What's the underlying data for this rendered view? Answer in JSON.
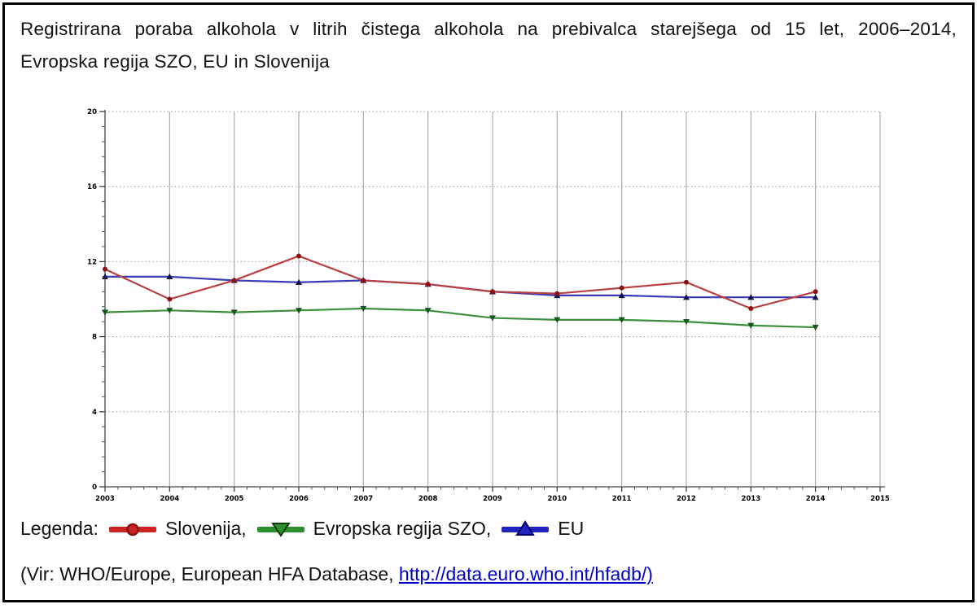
{
  "page": {
    "title_line1": "Registrirana poraba alkohola v litrih čistega alkohola na prebivalca starejšega od 15 let, 2006–2014,",
    "title_line2": "Evropska regija SZO, EU in Slovenija",
    "legend": {
      "label": "Legenda:",
      "items": [
        {
          "name": "Slovenija,",
          "color": "#cc2222",
          "marker": "circle",
          "marker_color": "#8b1010"
        },
        {
          "name": "Evropska regija SZO,",
          "color": "#2e8f2e",
          "marker": "triangle-down",
          "marker_color": "#0a3d0a"
        },
        {
          "name": "EU",
          "color": "#2222c0",
          "marker": "triangle-up",
          "marker_color": "#00006b"
        }
      ]
    },
    "source": {
      "prefix": "(Vir: WHO/Europe, European HFA Database, ",
      "link": "http://data.euro.who.int/hfadb/)"
    }
  },
  "chart_data": {
    "type": "line",
    "title": "",
    "xlabel": "",
    "ylabel": "",
    "x": [
      2003,
      2004,
      2005,
      2006,
      2007,
      2008,
      2009,
      2010,
      2011,
      2012,
      2013,
      2014
    ],
    "series": [
      {
        "name": "Slovenija",
        "color": "#b94040",
        "marker": "circle",
        "marker_color": "#8b1010",
        "values": [
          11.6,
          10.0,
          11.0,
          12.3,
          11.0,
          10.8,
          10.4,
          10.3,
          10.6,
          10.9,
          9.5,
          10.4
        ]
      },
      {
        "name": "Evropska regija SZO",
        "color": "#3d8f3d",
        "marker": "triangle-down",
        "marker_color": "#14581c",
        "values": [
          9.3,
          9.4,
          9.3,
          9.4,
          9.5,
          9.4,
          9.0,
          8.9,
          8.9,
          8.8,
          8.6,
          8.5
        ]
      },
      {
        "name": "EU",
        "color": "#3a3ab8",
        "marker": "triangle-up",
        "marker_color": "#14144f",
        "values": [
          11.2,
          11.2,
          11.0,
          10.9,
          11.0,
          10.8,
          10.4,
          10.2,
          10.2,
          10.1,
          10.1,
          10.1
        ]
      }
    ],
    "xlim": [
      2003,
      2015
    ],
    "ylim": [
      0,
      20
    ],
    "xticks": [
      2003,
      2004,
      2005,
      2006,
      2007,
      2008,
      2009,
      2010,
      2011,
      2012,
      2013,
      2014,
      2015
    ],
    "yticks": [
      0,
      4,
      8,
      12,
      16,
      20
    ],
    "minor_x_step": 0.2,
    "minor_y_step": 0.8,
    "grid": {
      "vertical": "solid",
      "horizontal": "dotted"
    },
    "legend_position": "below"
  }
}
